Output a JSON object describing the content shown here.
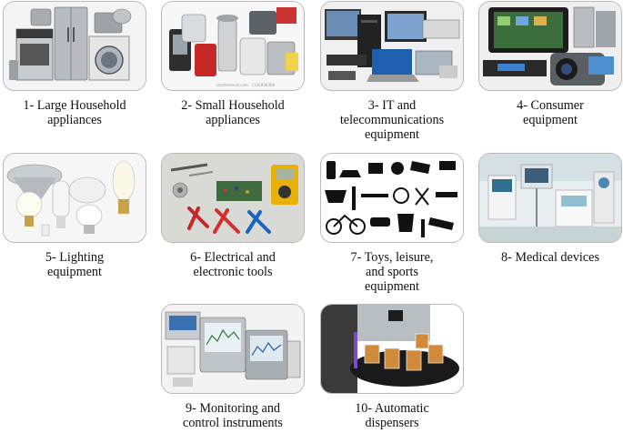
{
  "categories": [
    {
      "id": 1,
      "lines": [
        "1- Large Household",
        "appliances"
      ],
      "icon": "large-appliances-icon"
    },
    {
      "id": 2,
      "lines": [
        "2- Small Household",
        "appliances"
      ],
      "icon": "small-appliances-icon"
    },
    {
      "id": 3,
      "lines": [
        "3- IT and",
        "telecommunications",
        "equipment"
      ],
      "icon": "it-equipment-icon"
    },
    {
      "id": 4,
      "lines": [
        "4- Consumer",
        "equipment"
      ],
      "icon": "consumer-equipment-icon"
    },
    {
      "id": 5,
      "lines": [
        "5- Lighting",
        "equipment"
      ],
      "icon": "lighting-icon"
    },
    {
      "id": 6,
      "lines": [
        "6- Electrical and",
        "electronic tools"
      ],
      "icon": "electrical-tools-icon"
    },
    {
      "id": 7,
      "lines": [
        "7- Toys, leisure,",
        "and sports",
        "equipment"
      ],
      "icon": "toys-sports-icon"
    },
    {
      "id": 8,
      "lines": [
        "8- Medical devices"
      ],
      "icon": "medical-devices-icon"
    },
    {
      "id": 9,
      "lines": [
        "9- Monitoring and",
        "control instruments"
      ],
      "icon": "monitoring-instruments-icon"
    },
    {
      "id": 10,
      "lines": [
        "10- Automatic",
        "dispensers"
      ],
      "icon": "dispensers-icon"
    }
  ],
  "watermark": "shutterstock.com · 1136406368"
}
